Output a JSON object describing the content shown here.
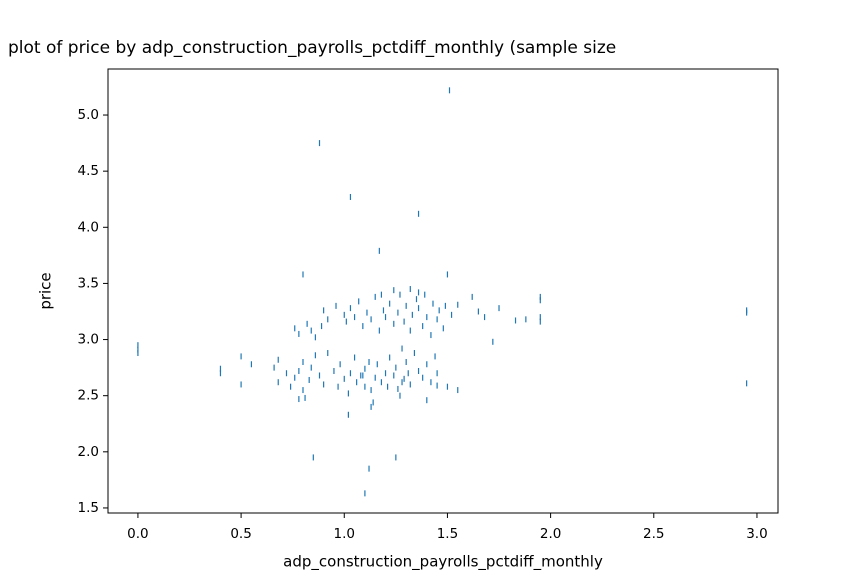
{
  "chart_data": {
    "type": "scatter",
    "title": "plot of price by adp_construction_payrolls_pctdiff_monthly (sample size",
    "x_label": "adp_construction_payrolls_pctdiff_monthly",
    "y_label": "price",
    "color": "#1f77b4",
    "x": [
      1.51,
      0.88,
      1.03,
      1.36,
      1.17,
      0.8,
      1.5,
      0.85,
      1.12,
      1.25,
      1.1,
      2.95,
      2.95,
      2.95,
      0.0,
      0.0,
      0.0,
      0.4,
      0.4,
      0.5,
      0.5,
      0.55,
      1.02,
      1.95,
      1.95,
      1.95,
      1.95,
      1.88,
      1.83,
      1.75,
      1.72,
      1.68,
      1.65,
      1.62,
      1.55,
      1.55,
      1.5,
      1.45,
      1.4,
      0.66,
      0.68,
      0.68,
      0.72,
      0.74,
      0.76,
      0.78,
      0.78,
      0.8,
      0.8,
      0.83,
      0.84,
      0.86,
      0.88,
      0.9,
      0.92,
      0.95,
      0.98,
      1.0,
      1.02,
      1.03,
      1.05,
      1.06,
      1.08,
      1.1,
      1.1,
      1.12,
      1.13,
      1.15,
      1.16,
      1.18,
      1.2,
      1.21,
      1.22,
      1.24,
      1.25,
      1.26,
      1.28,
      1.29,
      1.3,
      1.31,
      1.32,
      1.34,
      1.36,
      1.38,
      1.4,
      1.42,
      1.44,
      1.45,
      1.13,
      1.14,
      1.27,
      1.28,
      0.81,
      0.97,
      1.09,
      0.76,
      0.78,
      0.82,
      0.84,
      0.86,
      0.89,
      0.9,
      0.92,
      0.96,
      1.0,
      1.01,
      1.03,
      1.05,
      1.07,
      1.09,
      1.11,
      1.13,
      1.15,
      1.17,
      1.19,
      1.2,
      1.22,
      1.24,
      1.26,
      1.27,
      1.29,
      1.3,
      1.32,
      1.33,
      1.35,
      1.36,
      1.38,
      1.39,
      1.4,
      1.42,
      1.43,
      1.45,
      1.46,
      1.48,
      1.49,
      1.52,
      1.32,
      1.24,
      1.18,
      1.36
    ],
    "values": [
      5.22,
      4.75,
      4.27,
      4.12,
      3.79,
      3.58,
      3.58,
      1.95,
      1.85,
      1.95,
      1.63,
      2.61,
      3.24,
      3.26,
      2.88,
      2.95,
      2.91,
      2.7,
      2.74,
      2.6,
      2.85,
      2.78,
      2.33,
      3.38,
      3.35,
      3.2,
      3.16,
      3.18,
      3.17,
      3.28,
      2.98,
      3.2,
      3.25,
      3.38,
      3.31,
      2.55,
      2.58,
      2.59,
      2.46,
      2.75,
      2.62,
      2.82,
      2.7,
      2.58,
      2.66,
      2.47,
      2.72,
      2.8,
      2.55,
      2.64,
      2.75,
      2.86,
      2.68,
      2.6,
      2.88,
      2.72,
      2.78,
      2.65,
      2.52,
      2.7,
      2.84,
      2.62,
      2.68,
      2.74,
      2.58,
      2.8,
      2.55,
      2.66,
      2.78,
      2.62,
      2.7,
      2.58,
      2.84,
      2.68,
      2.75,
      2.56,
      2.92,
      2.65,
      2.8,
      2.7,
      2.6,
      2.88,
      2.72,
      2.66,
      2.78,
      2.62,
      2.85,
      2.7,
      2.4,
      2.44,
      2.5,
      2.62,
      2.48,
      2.58,
      2.68,
      3.1,
      3.05,
      3.14,
      3.08,
      3.02,
      3.12,
      3.26,
      3.18,
      3.3,
      3.22,
      3.16,
      3.28,
      3.2,
      3.34,
      3.12,
      3.24,
      3.18,
      3.38,
      3.08,
      3.26,
      3.2,
      3.32,
      3.14,
      3.24,
      3.4,
      3.16,
      3.3,
      3.08,
      3.22,
      3.36,
      3.28,
      3.12,
      3.4,
      3.2,
      3.04,
      3.32,
      3.18,
      3.26,
      3.1,
      3.3,
      3.22,
      3.45,
      3.44,
      3.4,
      3.42
    ],
    "xlim": [
      -0.145,
      3.102
    ],
    "ylim": [
      1.455,
      5.41
    ],
    "xticks": [
      {
        "value": 0,
        "label": "0.0"
      },
      0.5,
      {
        "value": 1,
        "label": "1.0"
      },
      1.5,
      {
        "value": 2,
        "label": "2.0"
      },
      2.5,
      {
        "value": 3,
        "label": "3.0"
      }
    ],
    "yticks": [
      1.5,
      {
        "value": 2,
        "label": "2.0"
      },
      2.5,
      {
        "value": 3,
        "label": "3.0"
      },
      3.5,
      {
        "value": 4,
        "label": "4.0"
      },
      4.5,
      {
        "value": 5,
        "label": "5.0"
      }
    ],
    "grid": false
  }
}
